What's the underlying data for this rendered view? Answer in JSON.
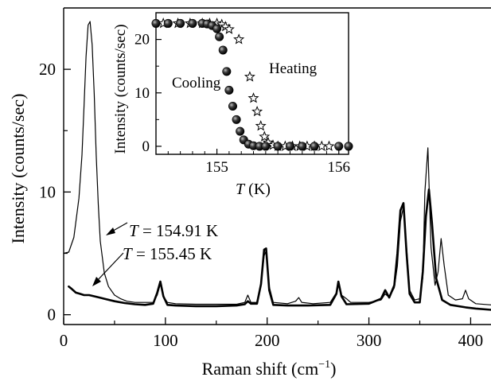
{
  "chart_data": [
    {
      "type": "line",
      "xlabel": "Raman shift",
      "xunit": "(cm",
      "xunit_sup": "−1",
      "xunit_close": ")",
      "ylabel": "Intensity  (counts/sec)",
      "xlim": [
        0,
        420
      ],
      "ylim": [
        -0.8,
        25
      ],
      "xticks": [
        "0",
        "100",
        "200",
        "300",
        "400"
      ],
      "yticks": [
        "0",
        "10",
        "20"
      ],
      "annotations": [
        {
          "text": "T",
          "rest": " = 154.91 K",
          "points_to": [
            38,
            5.0
          ]
        },
        {
          "text": "T",
          "rest": " = 155.45 K",
          "points_to": [
            25,
            1.9
          ]
        }
      ],
      "series": [
        {
          "style": "thin",
          "x": [
            0,
            5,
            10,
            15,
            18,
            20,
            22,
            24,
            26,
            28,
            30,
            32,
            34,
            36,
            40,
            44,
            50,
            56,
            62,
            70,
            80,
            88,
            92,
            95,
            98,
            102,
            110,
            130,
            150,
            170,
            178,
            181,
            184,
            190,
            194,
            197,
            199,
            202,
            206,
            220,
            228,
            231,
            234,
            245,
            262,
            268,
            270,
            273,
            278,
            282,
            300,
            312,
            316,
            320,
            325,
            328,
            331,
            334,
            337,
            340,
            345,
            350,
            353,
            355,
            358,
            361,
            365,
            368,
            371,
            374,
            378,
            385,
            392,
            395,
            398,
            405,
            420
          ],
          "y": [
            5.0,
            5.1,
            6.3,
            9.5,
            13.0,
            17.0,
            21.0,
            23.6,
            23.9,
            22.0,
            18.0,
            13.0,
            9.0,
            6.0,
            3.4,
            2.3,
            1.6,
            1.3,
            1.1,
            1.0,
            1.0,
            1.0,
            1.6,
            2.5,
            1.5,
            1.0,
            0.9,
            0.85,
            0.85,
            0.85,
            1.0,
            1.6,
            1.0,
            1.0,
            2.5,
            4.8,
            5.2,
            2.3,
            1.0,
            0.9,
            1.1,
            1.4,
            1.0,
            0.9,
            1.0,
            1.8,
            2.4,
            1.6,
            1.3,
            1.0,
            1.0,
            1.2,
            1.7,
            1.4,
            2.2,
            4.0,
            7.6,
            8.8,
            5.5,
            2.0,
            1.2,
            1.3,
            3.0,
            10.0,
            13.6,
            5.5,
            2.4,
            3.5,
            6.2,
            4.0,
            1.6,
            1.2,
            1.3,
            2.0,
            1.3,
            0.9,
            0.8
          ]
        },
        {
          "style": "thick",
          "x": [
            5,
            8,
            12,
            16,
            20,
            25,
            30,
            40,
            50,
            60,
            70,
            80,
            88,
            92,
            95,
            98,
            102,
            110,
            130,
            150,
            170,
            178,
            181,
            184,
            190,
            194,
            197,
            199,
            202,
            206,
            220,
            240,
            262,
            268,
            270,
            273,
            278,
            300,
            312,
            316,
            320,
            325,
            328,
            331,
            334,
            337,
            340,
            345,
            350,
            353,
            356,
            359,
            362,
            366,
            372,
            380,
            395,
            405,
            420
          ],
          "y": [
            2.3,
            2.1,
            1.8,
            1.7,
            1.6,
            1.6,
            1.5,
            1.3,
            1.1,
            0.95,
            0.85,
            0.8,
            0.9,
            1.8,
            2.7,
            1.5,
            0.8,
            0.75,
            0.7,
            0.7,
            0.75,
            0.85,
            1.1,
            0.9,
            0.9,
            2.5,
            5.3,
            5.4,
            2.0,
            0.8,
            0.75,
            0.75,
            0.8,
            1.7,
            2.7,
            1.5,
            0.85,
            0.9,
            1.3,
            2.0,
            1.4,
            2.4,
            5.0,
            8.5,
            9.1,
            5.0,
            1.7,
            1.0,
            1.0,
            3.5,
            8.0,
            10.2,
            7.5,
            3.0,
            1.2,
            0.8,
            0.6,
            0.5,
            0.4
          ]
        }
      ]
    },
    {
      "type": "scatter",
      "xlabel": "T",
      "xunit": "(K)",
      "ylabel": "Intensity  (counts/sec)",
      "xlim": [
        154.5,
        156.08
      ],
      "ylim": [
        -1.5,
        25
      ],
      "xticks": [
        "155",
        "156"
      ],
      "yticks": [
        "0",
        "10",
        "20"
      ],
      "annotations": [
        {
          "text": "Cooling"
        },
        {
          "text": "Heating"
        }
      ],
      "series": [
        {
          "marker": "filled-sphere",
          "points": [
            [
              154.5,
              23.0
            ],
            [
              154.6,
              23.0
            ],
            [
              154.7,
              23.0
            ],
            [
              154.8,
              23.0
            ],
            [
              154.88,
              23.0
            ],
            [
              154.92,
              22.9
            ],
            [
              154.96,
              22.6
            ],
            [
              155.0,
              22.0
            ],
            [
              155.02,
              20.5
            ],
            [
              155.05,
              18.0
            ],
            [
              155.08,
              14.0
            ],
            [
              155.1,
              10.5
            ],
            [
              155.13,
              7.5
            ],
            [
              155.16,
              5.0
            ],
            [
              155.19,
              2.8
            ],
            [
              155.22,
              1.2
            ],
            [
              155.26,
              0.4
            ],
            [
              155.3,
              0.1
            ],
            [
              155.35,
              0.0
            ],
            [
              155.4,
              0.0
            ],
            [
              155.5,
              0.0
            ],
            [
              155.6,
              0.0
            ],
            [
              155.7,
              0.0
            ],
            [
              155.8,
              0.0
            ],
            [
              156.0,
              0.0
            ],
            [
              156.08,
              0.0
            ]
          ]
        },
        {
          "marker": "open-star",
          "points": [
            [
              154.56,
              23.0
            ],
            [
              154.68,
              23.0
            ],
            [
              154.78,
              23.0
            ],
            [
              154.88,
              23.0
            ],
            [
              154.94,
              23.0
            ],
            [
              155.0,
              23.0
            ],
            [
              155.04,
              22.8
            ],
            [
              155.07,
              22.4
            ],
            [
              155.1,
              21.9
            ],
            [
              155.18,
              20.0
            ],
            [
              155.27,
              13.0
            ],
            [
              155.3,
              9.0
            ],
            [
              155.33,
              6.5
            ],
            [
              155.36,
              3.8
            ],
            [
              155.39,
              1.8
            ],
            [
              155.42,
              0.7
            ],
            [
              155.46,
              0.2
            ],
            [
              155.5,
              0.0
            ],
            [
              155.56,
              0.0
            ],
            [
              155.62,
              0.0
            ],
            [
              155.68,
              0.0
            ],
            [
              155.74,
              0.0
            ],
            [
              155.8,
              0.0
            ],
            [
              155.86,
              0.0
            ],
            [
              155.92,
              0.0
            ]
          ]
        }
      ]
    }
  ]
}
